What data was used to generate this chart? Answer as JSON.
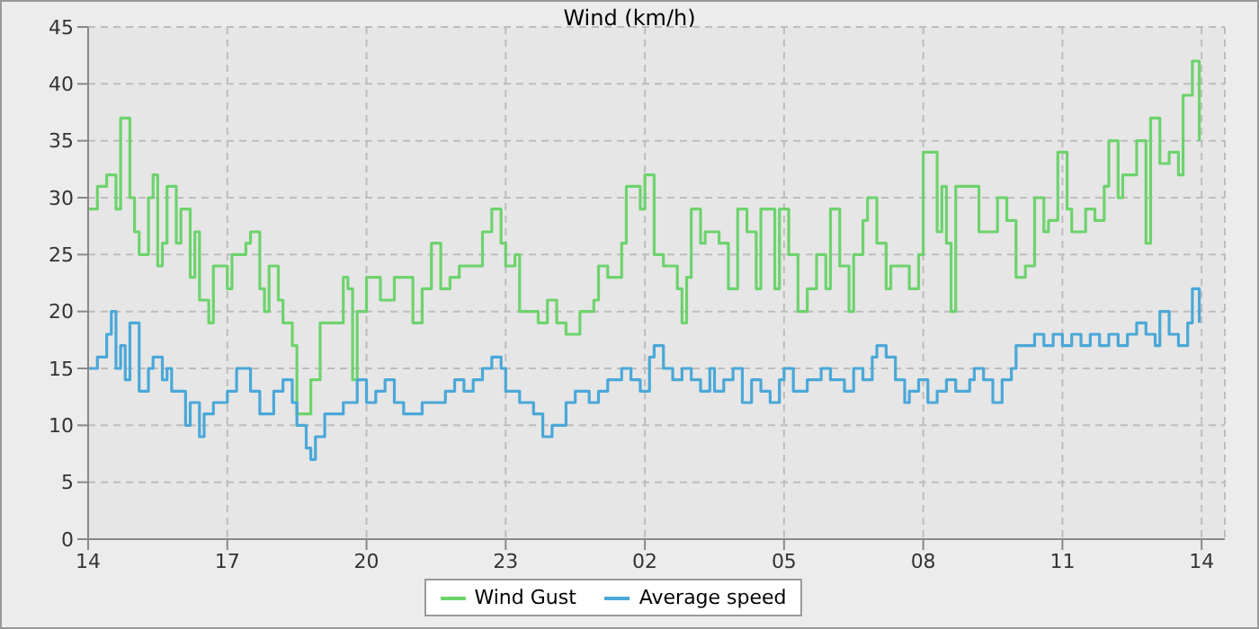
{
  "chart_data": {
    "type": "step",
    "title": "Wind (km/h)",
    "xlim": [
      "--01-01T14:00",
      "--01-02T14:30"
    ],
    "xticks": [
      {
        "value": "--01-01T14:00",
        "label": "14"
      },
      {
        "value": "--01-01T17:00",
        "label": "17"
      },
      {
        "value": "--01-01T20:00",
        "label": "20"
      },
      {
        "value": "--01-01T23:00",
        "label": "23"
      },
      {
        "value": "--01-02T02:00",
        "label": "02"
      },
      {
        "value": "--01-02T05:00",
        "label": "05"
      },
      {
        "value": "--01-02T08:00",
        "label": "08"
      },
      {
        "value": "--01-02T11:00",
        "label": "11"
      },
      {
        "value": "--01-02T14:00",
        "label": "14"
      }
    ],
    "ylim": [
      0,
      45
    ],
    "yticks": [
      0,
      5,
      10,
      15,
      20,
      25,
      30,
      35,
      40,
      45
    ],
    "grid": true,
    "legend": "bottom",
    "line_style": "solid",
    "marker": "none",
    "series": [
      {
        "name": "Wind Gust",
        "color": "#6dd36d",
        "x": [
          "--01-01T14:00",
          "--01-01T14:12",
          "--01-01T14:24",
          "--01-01T14:36",
          "--01-01T14:42",
          "--01-01T14:54",
          "--01-01T15:00",
          "--01-01T15:06",
          "--01-01T15:18",
          "--01-01T15:24",
          "--01-01T15:30",
          "--01-01T15:36",
          "--01-01T15:42",
          "--01-01T15:54",
          "--01-01T16:00",
          "--01-01T16:12",
          "--01-01T16:18",
          "--01-01T16:24",
          "--01-01T16:36",
          "--01-01T16:42",
          "--01-01T16:54",
          "--01-01T17:00",
          "--01-01T17:06",
          "--01-01T17:24",
          "--01-01T17:30",
          "--01-01T17:42",
          "--01-01T17:48",
          "--01-01T17:54",
          "--01-01T18:06",
          "--01-01T18:12",
          "--01-01T18:24",
          "--01-01T18:30",
          "--01-01T18:48",
          "--01-01T19:00",
          "--01-01T19:18",
          "--01-01T19:30",
          "--01-01T19:36",
          "--01-01T19:42",
          "--01-01T19:48",
          "--01-01T20:00",
          "--01-01T20:18",
          "--01-01T20:36",
          "--01-01T20:48",
          "--01-01T21:00",
          "--01-01T21:12",
          "--01-01T21:24",
          "--01-01T21:36",
          "--01-01T21:48",
          "--01-01T22:00",
          "--01-01T22:18",
          "--01-01T22:30",
          "--01-01T22:42",
          "--01-01T22:54",
          "--01-01T23:00",
          "--01-01T23:12",
          "--01-01T23:18",
          "--01-01T23:30",
          "--01-01T23:42",
          "--01-01T23:54",
          "--01-02T00:06",
          "--01-02T00:18",
          "--01-02T00:36",
          "--01-02T00:54",
          "--01-02T01:00",
          "--01-02T01:12",
          "--01-02T01:30",
          "--01-02T01:36",
          "--01-02T01:54",
          "--01-02T02:00",
          "--01-02T02:12",
          "--01-02T02:24",
          "--01-02T02:42",
          "--01-02T02:48",
          "--01-02T02:54",
          "--01-02T03:00",
          "--01-02T03:12",
          "--01-02T03:18",
          "--01-02T03:36",
          "--01-02T03:48",
          "--01-02T04:00",
          "--01-02T04:12",
          "--01-02T04:24",
          "--01-02T04:30",
          "--01-02T04:48",
          "--01-02T04:54",
          "--01-02T05:06",
          "--01-02T05:18",
          "--01-02T05:30",
          "--01-02T05:42",
          "--01-02T05:54",
          "--01-02T06:00",
          "--01-02T06:12",
          "--01-02T06:24",
          "--01-02T06:30",
          "--01-02T06:42",
          "--01-02T06:48",
          "--01-02T07:00",
          "--01-02T07:12",
          "--01-02T07:18",
          "--01-02T07:30",
          "--01-02T07:42",
          "--01-02T07:54",
          "--01-02T08:00",
          "--01-02T08:18",
          "--01-02T08:24",
          "--01-02T08:30",
          "--01-02T08:36",
          "--01-02T08:42",
          "--01-02T09:00",
          "--01-02T09:12",
          "--01-02T09:24",
          "--01-02T09:36",
          "--01-02T09:48",
          "--01-02T10:00",
          "--01-02T10:12",
          "--01-02T10:24",
          "--01-02T10:36",
          "--01-02T10:42",
          "--01-02T10:54",
          "--01-02T11:06",
          "--01-02T11:12",
          "--01-02T11:30",
          "--01-02T11:42",
          "--01-02T11:54",
          "--01-02T12:00",
          "--01-02T12:12",
          "--01-02T12:18",
          "--01-02T12:36",
          "--01-02T12:48",
          "--01-02T12:54",
          "--01-02T13:06",
          "--01-02T13:18",
          "--01-02T13:30",
          "--01-02T13:36",
          "--01-02T13:48",
          "--01-02T13:57"
        ],
        "values": [
          29,
          31,
          32,
          29,
          37,
          30,
          27,
          25,
          30,
          32,
          24,
          26,
          31,
          26,
          29,
          23,
          27,
          21,
          19,
          24,
          24,
          22,
          25,
          26,
          27,
          22,
          20,
          24,
          21,
          19,
          17,
          11,
          14,
          19,
          19,
          23,
          22,
          14,
          20,
          23,
          21,
          23,
          23,
          19,
          22,
          26,
          22,
          23,
          24,
          24,
          27,
          29,
          26,
          24,
          25,
          20,
          20,
          19,
          21,
          19,
          18,
          20,
          21,
          24,
          23,
          26,
          31,
          29,
          32,
          25,
          24,
          22,
          19,
          23,
          29,
          26,
          27,
          26,
          22,
          29,
          27,
          22,
          29,
          22,
          29,
          25,
          20,
          22,
          25,
          22,
          29,
          24,
          20,
          25,
          28,
          30,
          26,
          22,
          24,
          24,
          22,
          25,
          34,
          27,
          31,
          26,
          20,
          31,
          31,
          27,
          27,
          30,
          28,
          23,
          24,
          30,
          27,
          28,
          34,
          29,
          27,
          29,
          28,
          31,
          35,
          30,
          32,
          35,
          26,
          37,
          33,
          34,
          32,
          39,
          42,
          35
        ]
      },
      {
        "name": "Average speed",
        "color": "#4aa8d8",
        "x": [
          "--01-01T14:00",
          "--01-01T14:12",
          "--01-01T14:24",
          "--01-01T14:30",
          "--01-01T14:36",
          "--01-01T14:42",
          "--01-01T14:48",
          "--01-01T14:54",
          "--01-01T15:06",
          "--01-01T15:18",
          "--01-01T15:24",
          "--01-01T15:36",
          "--01-01T15:42",
          "--01-01T15:48",
          "--01-01T16:00",
          "--01-01T16:06",
          "--01-01T16:12",
          "--01-01T16:24",
          "--01-01T16:30",
          "--01-01T16:42",
          "--01-01T17:00",
          "--01-01T17:12",
          "--01-01T17:30",
          "--01-01T17:42",
          "--01-01T18:00",
          "--01-01T18:12",
          "--01-01T18:24",
          "--01-01T18:30",
          "--01-01T18:42",
          "--01-01T18:48",
          "--01-01T18:54",
          "--01-01T19:06",
          "--01-01T19:18",
          "--01-01T19:30",
          "--01-01T19:48",
          "--01-01T20:00",
          "--01-01T20:12",
          "--01-01T20:24",
          "--01-01T20:36",
          "--01-01T20:48",
          "--01-01T21:00",
          "--01-01T21:12",
          "--01-01T21:30",
          "--01-01T21:42",
          "--01-01T21:54",
          "--01-01T22:06",
          "--01-01T22:18",
          "--01-01T22:30",
          "--01-01T22:42",
          "--01-01T22:54",
          "--01-01T23:00",
          "--01-01T23:18",
          "--01-01T23:36",
          "--01-01T23:48",
          "--01-02T00:00",
          "--01-02T00:18",
          "--01-02T00:30",
          "--01-02T00:48",
          "--01-02T01:00",
          "--01-02T01:12",
          "--01-02T01:30",
          "--01-02T01:42",
          "--01-02T01:54",
          "--01-02T02:06",
          "--01-02T02:12",
          "--01-02T02:24",
          "--01-02T02:36",
          "--01-02T02:48",
          "--01-02T03:00",
          "--01-02T03:12",
          "--01-02T03:24",
          "--01-02T03:30",
          "--01-02T03:42",
          "--01-02T03:54",
          "--01-02T04:06",
          "--01-02T04:18",
          "--01-02T04:30",
          "--01-02T04:42",
          "--01-02T04:54",
          "--01-02T05:00",
          "--01-02T05:12",
          "--01-02T05:30",
          "--01-02T05:48",
          "--01-02T06:00",
          "--01-02T06:18",
          "--01-02T06:30",
          "--01-02T06:42",
          "--01-02T06:54",
          "--01-02T07:00",
          "--01-02T07:12",
          "--01-02T07:24",
          "--01-02T07:36",
          "--01-02T07:42",
          "--01-02T07:54",
          "--01-02T08:06",
          "--01-02T08:18",
          "--01-02T08:30",
          "--01-02T08:42",
          "--01-02T09:00",
          "--01-02T09:06",
          "--01-02T09:18",
          "--01-02T09:30",
          "--01-02T09:42",
          "--01-02T09:54",
          "--01-02T10:00",
          "--01-02T10:12",
          "--01-02T10:24",
          "--01-02T10:36",
          "--01-02T10:48",
          "--01-02T11:00",
          "--01-02T11:12",
          "--01-02T11:24",
          "--01-02T11:36",
          "--01-02T11:48",
          "--01-02T12:00",
          "--01-02T12:12",
          "--01-02T12:24",
          "--01-02T12:36",
          "--01-02T12:48",
          "--01-02T13:00",
          "--01-02T13:06",
          "--01-02T13:18",
          "--01-02T13:30",
          "--01-02T13:42",
          "--01-02T13:48",
          "--01-02T13:57"
        ],
        "values": [
          15,
          16,
          18,
          20,
          15,
          17,
          14,
          19,
          13,
          15,
          16,
          14,
          15,
          13,
          13,
          10,
          12,
          9,
          11,
          12,
          13,
          15,
          13,
          11,
          13,
          14,
          12,
          10,
          8,
          7,
          9,
          11,
          11,
          12,
          14,
          12,
          13,
          14,
          12,
          11,
          11,
          12,
          12,
          13,
          14,
          13,
          14,
          15,
          16,
          15,
          13,
          12,
          11,
          9,
          10,
          12,
          13,
          12,
          13,
          14,
          15,
          14,
          13,
          16,
          17,
          15,
          14,
          15,
          14,
          13,
          15,
          13,
          14,
          15,
          12,
          14,
          13,
          12,
          14,
          15,
          13,
          14,
          15,
          14,
          13,
          15,
          14,
          16,
          17,
          16,
          14,
          12,
          13,
          14,
          12,
          13,
          14,
          13,
          14,
          15,
          14,
          12,
          14,
          15,
          17,
          17,
          18,
          17,
          18,
          17,
          18,
          17,
          18,
          17,
          18,
          17,
          18,
          19,
          18,
          17,
          20,
          18,
          17,
          19,
          22,
          19
        ]
      }
    ]
  }
}
